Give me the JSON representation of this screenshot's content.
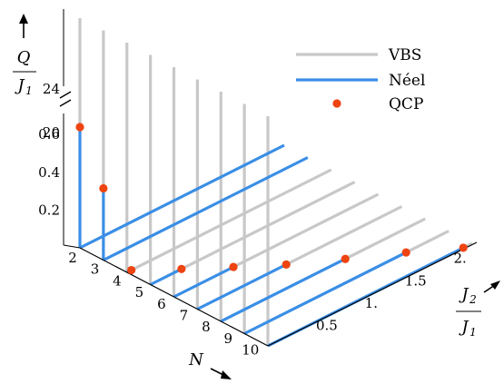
{
  "chart_data": {
    "type": "line",
    "title": "",
    "xlabel": "N",
    "ylabel": "Q / J1",
    "zlabel": "J2 / J1",
    "n_values": [
      2,
      3,
      4,
      5,
      6,
      7,
      8,
      9,
      10
    ],
    "j2_ticks": [
      "0.5",
      "1.",
      "1.5",
      "2."
    ],
    "j2_range": [
      0,
      2.3
    ],
    "q_ticks_lower": [
      "0.2",
      "0.4",
      "0.6"
    ],
    "q_ticks_upper": [
      "20",
      "24"
    ],
    "legend": {
      "position": "top-right",
      "entries": [
        {
          "label": "VBS",
          "color": "#c8c8c8",
          "kind": "line"
        },
        {
          "label": "Néel",
          "color": "#3a8ee6",
          "kind": "line"
        },
        {
          "label": "QCP",
          "color": "#ee4411",
          "kind": "point"
        }
      ]
    },
    "series": [
      {
        "name": "VBS",
        "description": "vertical lines at J2/J1 = 0 above the critical Q; horizontal lines along J2/J1 beyond the QCP"
      },
      {
        "name": "Néel",
        "description": "vertical segment below the QCP at J2/J1 = 0 (N = 2, 3) and horizontal segment from J2/J1 = 0 to the QCP at Q = 0 (N >= 4)"
      },
      {
        "name": "QCP"
      }
    ],
    "qcp_points": [
      {
        "N": 2,
        "J2_over_J1": 0,
        "Q_over_J1": 20.5
      },
      {
        "N": 3,
        "J2_over_J1": 0,
        "Q_over_J1": 0.38
      },
      {
        "N": 4,
        "J2_over_J1": 0.05,
        "Q_over_J1": 0
      },
      {
        "N": 5,
        "J2_over_J1": 0.35,
        "Q_over_J1": 0
      },
      {
        "N": 6,
        "J2_over_J1": 0.67,
        "Q_over_J1": 0
      },
      {
        "N": 7,
        "J2_over_J1": 1.0,
        "Q_over_J1": 0
      },
      {
        "N": 8,
        "J2_over_J1": 1.4,
        "Q_over_J1": 0
      },
      {
        "N": 9,
        "J2_over_J1": 1.82,
        "Q_over_J1": 0
      },
      {
        "N": 10,
        "J2_over_J1": 2.2,
        "Q_over_J1": 0
      }
    ],
    "grid": false
  }
}
